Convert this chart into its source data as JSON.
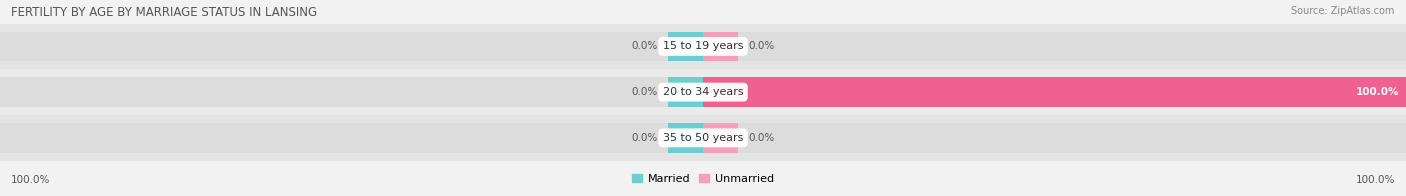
{
  "title": "FERTILITY BY AGE BY MARRIAGE STATUS IN LANSING",
  "source": "Source: ZipAtlas.com",
  "categories": [
    "15 to 19 years",
    "20 to 34 years",
    "35 to 50 years"
  ],
  "married_pct": [
    0.0,
    0.0,
    0.0
  ],
  "unmarried_pct": [
    0.0,
    100.0,
    0.0
  ],
  "married_color": "#6ECDD1",
  "unmarried_color_full": "#F06090",
  "unmarried_color_small": "#F5A0B8",
  "bg_color": "#F2F2F2",
  "bar_bg_color": "#E4E4E4",
  "bar_bg_color2": "#EBEBEB",
  "title_fontsize": 8.5,
  "label_fontsize": 8,
  "tick_fontsize": 7.5,
  "legend_fontsize": 8
}
